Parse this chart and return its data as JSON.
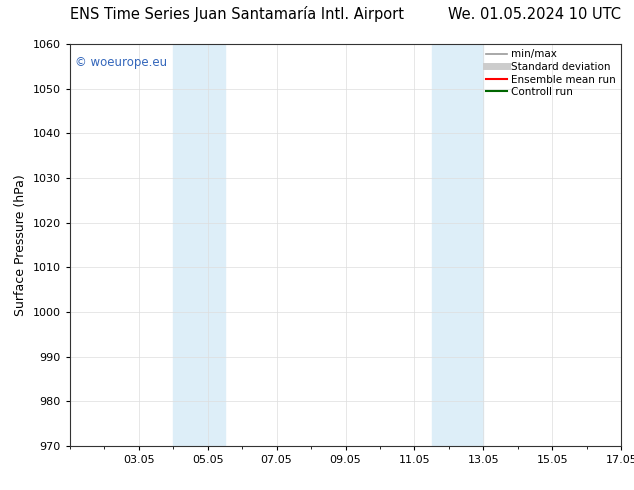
{
  "title_left": "ENS Time Series Juan Santamaría Intl. Airport",
  "title_right": "We. 01.05.2024 10 UTC",
  "ylabel": "Surface Pressure (hPa)",
  "ylim": [
    970,
    1060
  ],
  "yticks": [
    970,
    980,
    990,
    1000,
    1010,
    1020,
    1030,
    1040,
    1050,
    1060
  ],
  "xtick_labels": [
    "03.05",
    "05.05",
    "07.05",
    "09.05",
    "11.05",
    "13.05",
    "15.05",
    "17.05"
  ],
  "xtick_days": [
    3,
    5,
    7,
    9,
    11,
    13,
    15,
    17
  ],
  "shaded_bands": [
    {
      "day_start": 4.0,
      "day_end": 5.5,
      "color": "#ddeef8"
    },
    {
      "day_start": 11.5,
      "day_end": 13.0,
      "color": "#ddeef8"
    }
  ],
  "watermark": "© woeurope.eu",
  "watermark_color": "#3366bb",
  "legend_items": [
    {
      "label": "min/max",
      "color": "#999999",
      "lw": 1.2
    },
    {
      "label": "Standard deviation",
      "color": "#cccccc",
      "lw": 5
    },
    {
      "label": "Ensemble mean run",
      "color": "#ff0000",
      "lw": 1.5
    },
    {
      "label": "Controll run",
      "color": "#006600",
      "lw": 1.5
    }
  ],
  "bg_color": "#ffffff",
  "grid_color": "#dddddd",
  "title_fontsize": 10.5,
  "axis_label_fontsize": 9,
  "tick_fontsize": 8,
  "legend_fontsize": 7.5
}
